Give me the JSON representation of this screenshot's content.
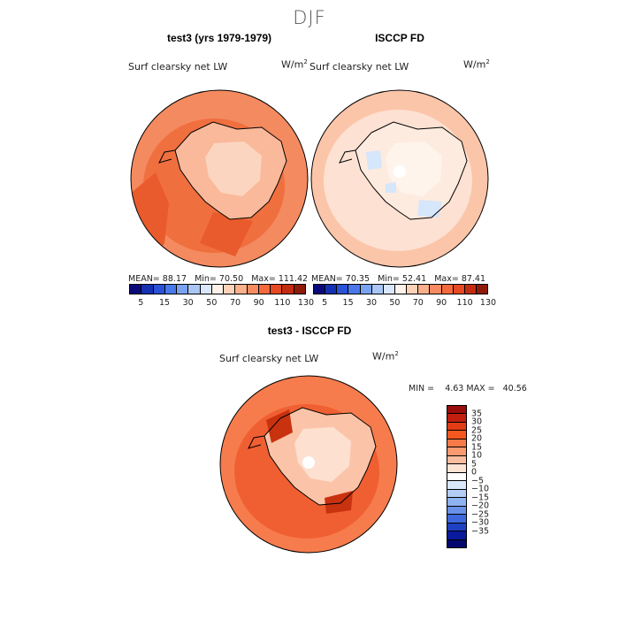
{
  "figure": {
    "season": "DJF",
    "colors": {
      "coast": "#000000",
      "pole": "#ffffff",
      "border": "#000000"
    }
  },
  "panels": [
    {
      "title": "test3 (yrs 1979-1979)",
      "variable": "Surf clearsky net LW",
      "units": "W/m",
      "units_sup": "2",
      "mean_label": "MEAN=",
      "mean": "88.17",
      "min_label": "Min=",
      "min": "70.50",
      "max_label": "Max=",
      "max": "111.42",
      "colorbar_ticks": [
        "5",
        "15",
        "30",
        "50",
        "70",
        "90",
        "110",
        "130"
      ],
      "colorbar_colors": [
        "#0a0a7a",
        "#1530b0",
        "#2a52d6",
        "#4a78e8",
        "#7aa2f0",
        "#a9c6f5",
        "#d9e6fb",
        "#fff3e9",
        "#fcd2b8",
        "#fbb08c",
        "#f98b62",
        "#f56a3c",
        "#e54a22",
        "#c22d12",
        "#8e1a0a"
      ],
      "map": {
        "ocean": "#f48a5f",
        "ocean_inner": "#f06f3f",
        "land": "#f9b99a",
        "land_core": "#fbd5c0",
        "patch": "#e95b2c"
      }
    },
    {
      "title": "ISCCP FD",
      "variable": "Surf clearsky net LW",
      "units": "W/m",
      "units_sup": "2",
      "mean_label": "MEAN=",
      "mean": "70.35",
      "min_label": "Min=",
      "min": "52.41",
      "max_label": "Max=",
      "max": "87.41",
      "colorbar_ticks": [
        "5",
        "15",
        "30",
        "50",
        "70",
        "90",
        "110",
        "130"
      ],
      "colorbar_colors": [
        "#0a0a7a",
        "#1530b0",
        "#2a52d6",
        "#4a78e8",
        "#7aa2f0",
        "#a9c6f5",
        "#d9e6fb",
        "#fff3e9",
        "#fcd2b8",
        "#fbb08c",
        "#f98b62",
        "#f56a3c",
        "#e54a22",
        "#c22d12",
        "#8e1a0a"
      ],
      "map": {
        "ocean": "#fbc5a9",
        "ocean_inner": "#fde1d2",
        "land": "#fdebdf",
        "land_core": "#fff4ec",
        "patch": "#d6e6fb"
      }
    }
  ],
  "difference": {
    "title": "test3 - ISCCP FD",
    "variable": "Surf clearsky net LW",
    "units": "W/m",
    "units_sup": "2",
    "min_label": "MIN =",
    "min": "4.63",
    "max_label": "MAX =",
    "max": "40.56",
    "colorbar_ticks": [
      "35",
      "30",
      "25",
      "20",
      "15",
      "10",
      "5",
      "0",
      "−5",
      "−10",
      "−15",
      "−20",
      "−25",
      "−30",
      "−35"
    ],
    "colorbar_colors": [
      "#9a0d0d",
      "#c21f10",
      "#e23c16",
      "#f4581f",
      "#f87a48",
      "#f99a70",
      "#fbbd9f",
      "#fde3d3",
      "#ffffff",
      "#d8e7fa",
      "#b3cdf5",
      "#8fb2f0",
      "#6a91e8",
      "#3f68dc",
      "#1f40c2",
      "#0a1a9c",
      "#04086e"
    ],
    "map": {
      "ocean": "#f67c4d",
      "ocean_inner": "#f05f32",
      "land": "#fbc4a8",
      "land_core": "#fde0d0",
      "patch": "#c9320f"
    }
  }
}
